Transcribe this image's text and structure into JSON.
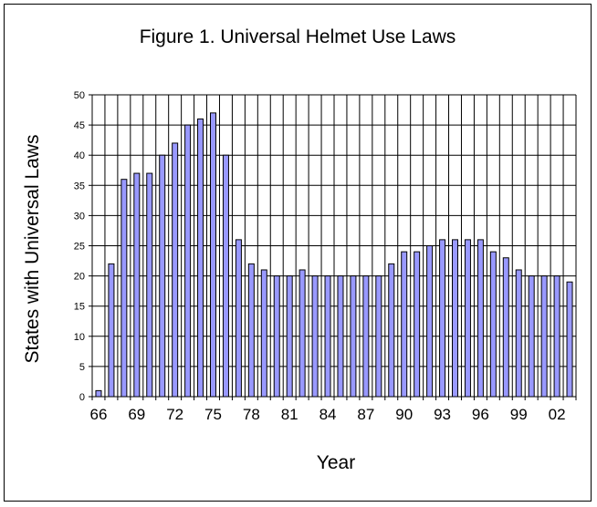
{
  "chart_data": {
    "type": "bar",
    "title": "Figure 1. Universal Helmet Use Laws",
    "xlabel": "Year",
    "ylabel": "States with Universal Laws",
    "ylim": [
      0,
      50
    ],
    "yticks": [
      0,
      5,
      10,
      15,
      20,
      25,
      30,
      35,
      40,
      45,
      50
    ],
    "grid": true,
    "legend": "none",
    "bar_color": "#9999ff",
    "categories": [
      "66",
      "67",
      "68",
      "69",
      "70",
      "71",
      "72",
      "73",
      "74",
      "75",
      "76",
      "77",
      "78",
      "79",
      "80",
      "81",
      "82",
      "83",
      "84",
      "85",
      "86",
      "87",
      "88",
      "89",
      "90",
      "91",
      "92",
      "93",
      "94",
      "95",
      "96",
      "97",
      "98",
      "99",
      "00",
      "01",
      "02",
      "03"
    ],
    "x_tick_labels": [
      "66",
      "69",
      "72",
      "75",
      "78",
      "81",
      "84",
      "87",
      "90",
      "93",
      "96",
      "99",
      "02"
    ],
    "values": [
      1,
      22,
      36,
      37,
      37,
      40,
      42,
      45,
      46,
      47,
      40,
      26,
      22,
      21,
      20,
      20,
      21,
      20,
      20,
      20,
      20,
      20,
      20,
      22,
      24,
      24,
      25,
      26,
      26,
      26,
      26,
      24,
      23,
      21,
      20,
      20,
      20,
      19
    ]
  }
}
